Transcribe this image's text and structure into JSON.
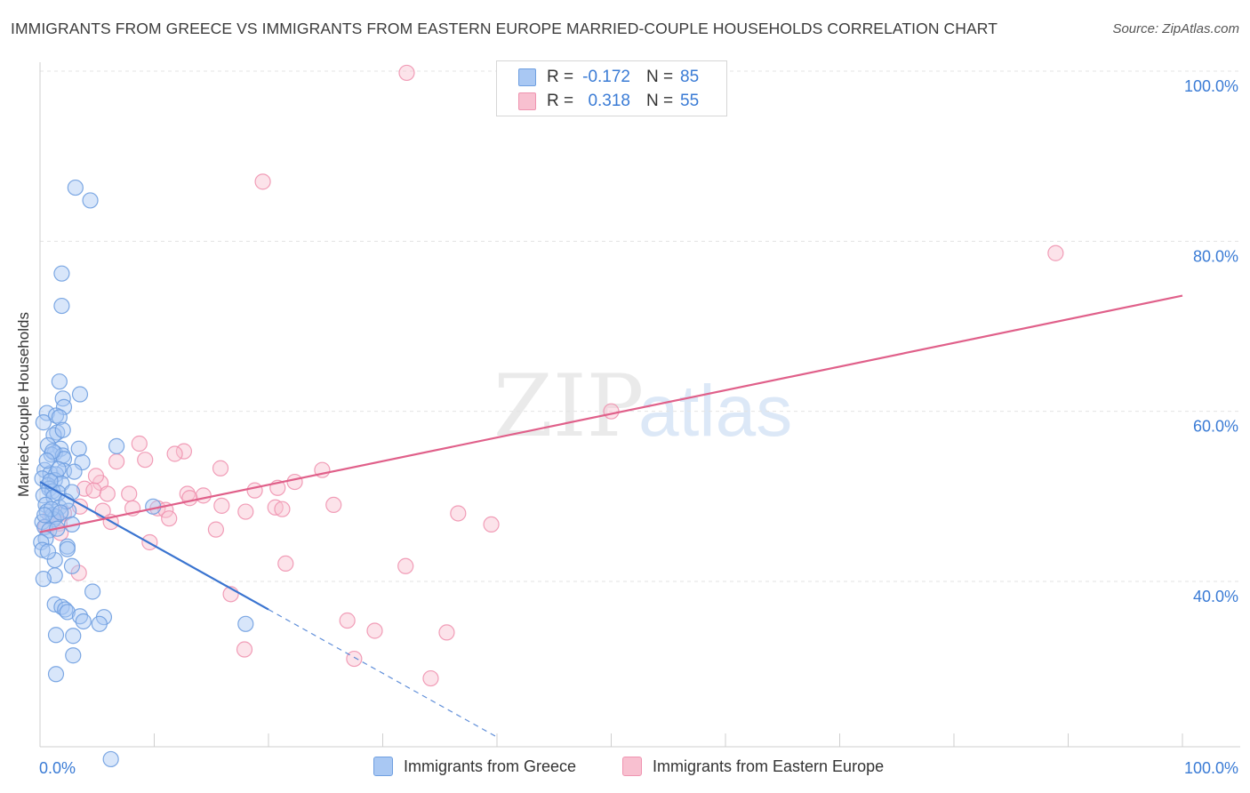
{
  "title": "IMMIGRANTS FROM GREECE VS IMMIGRANTS FROM EASTERN EUROPE MARRIED-COUPLE HOUSEHOLDS CORRELATION CHART",
  "source": "Source: ZipAtlas.com",
  "watermark": {
    "zip": "ZIP",
    "atlas": "atlas"
  },
  "correlation_box": {
    "rows": [
      {
        "r_label": "R =",
        "r_value": "-0.172",
        "n_label": "N =",
        "n_value": "85"
      },
      {
        "r_label": "R =",
        "r_value": "0.318",
        "n_label": "N =",
        "n_value": "55"
      }
    ]
  },
  "legend": {
    "greece": "Immigrants from Greece",
    "eastern_europe": "Immigrants from Eastern Europe"
  },
  "colors": {
    "greece_fill": "#a9c8f3",
    "greece_stroke": "#6f9fe0",
    "greece_line": "#3a74d0",
    "ee_fill": "#f8c0d0",
    "ee_stroke": "#ef94b0",
    "ee_line": "#e0608a",
    "tick_label": "#3a7bd5"
  },
  "chart_data": {
    "type": "scatter",
    "title": "IMMIGRANTS FROM GREECE VS IMMIGRANTS FROM EASTERN EUROPE MARRIED-COUPLE HOUSEHOLDS CORRELATION CHART",
    "xlabel": "",
    "ylabel": "Married-couple Households",
    "xlim": [
      0,
      100
    ],
    "ylim": [
      17.5,
      102
    ],
    "x_tick_labels": [
      "0.0%",
      "100.0%"
    ],
    "y_ticks": [
      40,
      60,
      80,
      100
    ],
    "y_tick_labels": [
      "40.0%",
      "60.0%",
      "80.0%",
      "100.0%"
    ],
    "grid": true,
    "legend_position": "bottom",
    "series": [
      {
        "name": "Immigrants from Greece",
        "r": -0.172,
        "n": 85,
        "trend": {
          "x0": 0.0,
          "y0": 51.7,
          "x1": 20.0,
          "y1": 36.7,
          "dashed_to_x": 40.0
        },
        "points": [
          [
            3.1,
            86.3
          ],
          [
            4.4,
            84.8
          ],
          [
            1.9,
            76.2
          ],
          [
            1.9,
            72.4
          ],
          [
            1.7,
            63.5
          ],
          [
            3.5,
            62.0
          ],
          [
            2.0,
            61.5
          ],
          [
            2.1,
            60.5
          ],
          [
            0.6,
            59.8
          ],
          [
            1.4,
            59.5
          ],
          [
            1.7,
            59.3
          ],
          [
            1.5,
            57.5
          ],
          [
            1.2,
            57.2
          ],
          [
            0.7,
            56.0
          ],
          [
            1.8,
            55.6
          ],
          [
            3.4,
            55.6
          ],
          [
            6.7,
            55.9
          ],
          [
            1.3,
            55.1
          ],
          [
            1.0,
            54.9
          ],
          [
            2.0,
            54.8
          ],
          [
            2.1,
            54.4
          ],
          [
            3.7,
            54.0
          ],
          [
            0.4,
            53.1
          ],
          [
            2.1,
            53.0
          ],
          [
            0.9,
            52.7
          ],
          [
            1.4,
            52.6
          ],
          [
            0.2,
            52.1
          ],
          [
            1.3,
            51.9
          ],
          [
            0.7,
            51.3
          ],
          [
            1.9,
            51.5
          ],
          [
            0.8,
            50.9
          ],
          [
            1.1,
            50.6
          ],
          [
            1.6,
            50.4
          ],
          [
            2.8,
            50.5
          ],
          [
            0.3,
            50.1
          ],
          [
            1.2,
            49.9
          ],
          [
            0.5,
            49.0
          ],
          [
            1.7,
            48.7
          ],
          [
            0.6,
            48.2
          ],
          [
            2.5,
            48.3
          ],
          [
            9.9,
            48.8
          ],
          [
            1.1,
            47.8
          ],
          [
            1.4,
            47.6
          ],
          [
            1.2,
            47.3
          ],
          [
            0.2,
            47.0
          ],
          [
            2.8,
            46.7
          ],
          [
            0.4,
            46.4
          ],
          [
            0.8,
            46.0
          ],
          [
            0.5,
            45.0
          ],
          [
            0.1,
            44.6
          ],
          [
            2.4,
            44.1
          ],
          [
            0.2,
            43.7
          ],
          [
            2.4,
            43.8
          ],
          [
            1.3,
            42.5
          ],
          [
            2.8,
            41.8
          ],
          [
            1.3,
            40.7
          ],
          [
            0.3,
            40.3
          ],
          [
            4.6,
            38.8
          ],
          [
            1.3,
            37.3
          ],
          [
            1.9,
            37.0
          ],
          [
            2.2,
            36.7
          ],
          [
            2.4,
            36.4
          ],
          [
            3.5,
            35.9
          ],
          [
            5.6,
            35.8
          ],
          [
            3.8,
            35.3
          ],
          [
            5.2,
            35.0
          ],
          [
            18.0,
            35.0
          ],
          [
            1.4,
            33.7
          ],
          [
            2.9,
            33.6
          ],
          [
            2.9,
            31.3
          ],
          [
            1.4,
            29.1
          ],
          [
            6.2,
            19.1
          ],
          [
            1.0,
            48.5
          ],
          [
            0.9,
            51.8
          ],
          [
            1.6,
            53.2
          ],
          [
            1.1,
            55.3
          ],
          [
            0.4,
            47.8
          ],
          [
            2.3,
            49.4
          ],
          [
            1.5,
            46.2
          ],
          [
            0.7,
            43.5
          ],
          [
            2.0,
            57.8
          ],
          [
            0.3,
            58.7
          ],
          [
            3.0,
            52.9
          ],
          [
            1.8,
            48.1
          ],
          [
            0.6,
            54.2
          ]
        ]
      },
      {
        "name": "Immigrants from Eastern Europe",
        "r": 0.318,
        "n": 55,
        "trend": {
          "x0": 0.0,
          "y0": 45.8,
          "x1": 100.0,
          "y1": 73.6
        },
        "points": [
          [
            32.1,
            99.8
          ],
          [
            47.2,
            99.9
          ],
          [
            19.5,
            87.0
          ],
          [
            88.9,
            78.6
          ],
          [
            50.0,
            60.0
          ],
          [
            8.7,
            56.2
          ],
          [
            12.6,
            55.3
          ],
          [
            11.8,
            55.0
          ],
          [
            6.7,
            54.1
          ],
          [
            9.2,
            54.3
          ],
          [
            15.8,
            53.3
          ],
          [
            24.7,
            53.1
          ],
          [
            22.3,
            51.7
          ],
          [
            5.3,
            51.6
          ],
          [
            20.8,
            51.0
          ],
          [
            3.9,
            50.9
          ],
          [
            4.7,
            50.7
          ],
          [
            18.8,
            50.7
          ],
          [
            7.8,
            50.3
          ],
          [
            12.9,
            50.3
          ],
          [
            14.3,
            50.1
          ],
          [
            5.9,
            50.3
          ],
          [
            13.1,
            49.8
          ],
          [
            8.1,
            48.6
          ],
          [
            10.3,
            48.6
          ],
          [
            15.9,
            48.9
          ],
          [
            20.6,
            48.7
          ],
          [
            21.2,
            48.5
          ],
          [
            25.7,
            49.0
          ],
          [
            3.5,
            48.8
          ],
          [
            5.5,
            48.3
          ],
          [
            11.0,
            48.4
          ],
          [
            36.6,
            48.0
          ],
          [
            18.0,
            48.2
          ],
          [
            2.1,
            48.0
          ],
          [
            0.9,
            47.6
          ],
          [
            11.3,
            47.4
          ],
          [
            6.2,
            47.0
          ],
          [
            1.7,
            46.8
          ],
          [
            39.5,
            46.7
          ],
          [
            0.5,
            46.4
          ],
          [
            15.4,
            46.1
          ],
          [
            1.8,
            45.7
          ],
          [
            9.6,
            44.6
          ],
          [
            21.5,
            42.1
          ],
          [
            32.0,
            41.8
          ],
          [
            3.4,
            41.0
          ],
          [
            16.7,
            38.5
          ],
          [
            26.9,
            35.4
          ],
          [
            29.3,
            34.2
          ],
          [
            35.6,
            34.0
          ],
          [
            17.9,
            32.0
          ],
          [
            27.5,
            30.9
          ],
          [
            34.2,
            28.6
          ],
          [
            4.9,
            52.4
          ]
        ]
      }
    ]
  }
}
